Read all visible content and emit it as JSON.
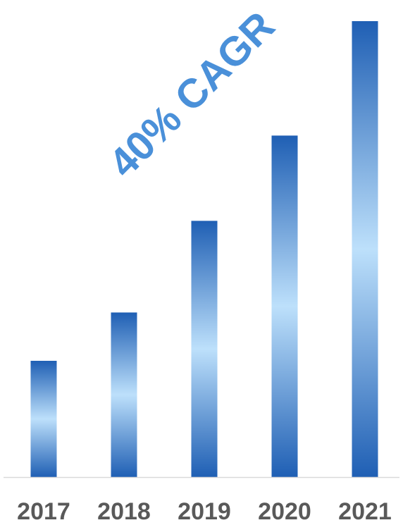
{
  "chart_data": {
    "type": "bar",
    "title": "",
    "xlabel": "",
    "ylabel": "",
    "categories": [
      "2017",
      "2018",
      "2019",
      "2020",
      "2021"
    ],
    "values": [
      25.5,
      36.1,
      56.2,
      74.9,
      100
    ],
    "ylim": [
      0,
      100
    ],
    "grid": false,
    "legend": "none",
    "annotation": "40% CAGR",
    "colors": {
      "bar_edge": "#1f5fb4",
      "bar_center": "#bde0fb",
      "annotation": "#4a90d9",
      "tick_label": "#595959",
      "axis_line": "#d9d9d9"
    }
  }
}
